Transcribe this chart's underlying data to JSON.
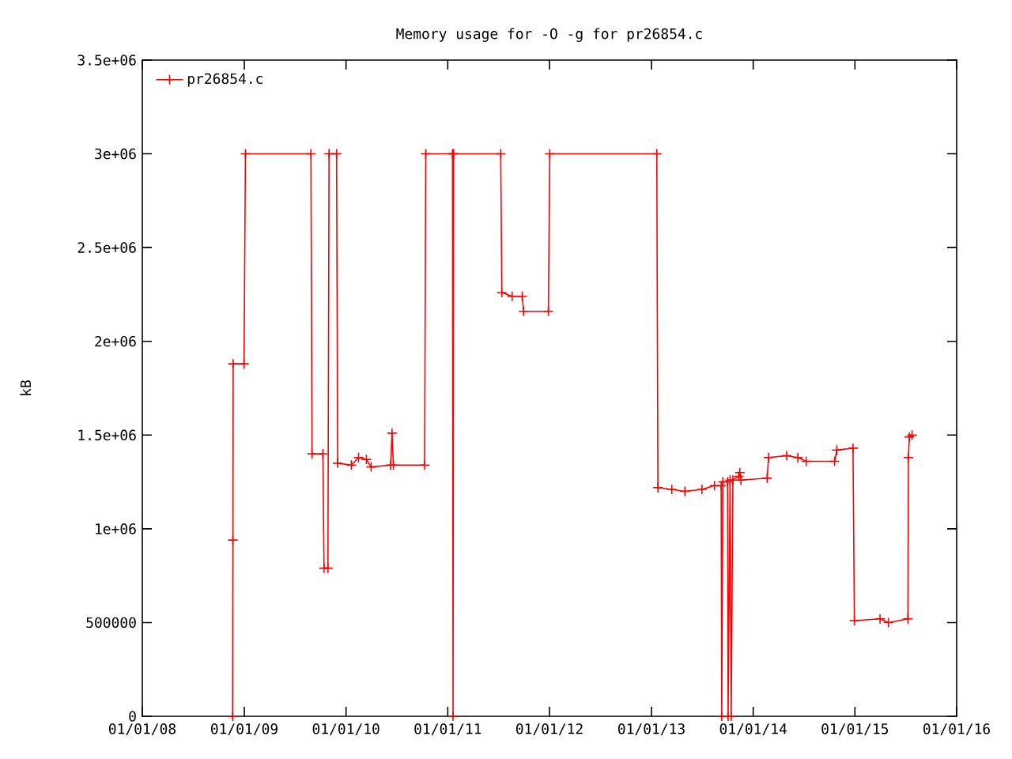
{
  "chart_data": {
    "type": "line",
    "title": "Memory usage for -O -g for pr26854.c",
    "ylabel": "kB",
    "x": [
      "2008-11-20",
      "2008-11-21",
      "2008-11-22",
      "2008-12-31",
      "2009-01-05",
      "2009-08-28",
      "2009-09-01",
      "2009-10-10",
      "2009-10-14",
      "2009-10-28",
      "2009-11-01",
      "2009-11-28",
      "2009-12-02",
      "2010-01-20",
      "2010-02-15",
      "2010-03-15",
      "2010-04-01",
      "2010-06-10",
      "2010-06-15",
      "2010-06-20",
      "2010-10-10",
      "2010-10-14",
      "2011-01-18",
      "2011-01-20",
      "2011-01-22",
      "2011-07-10",
      "2011-07-14",
      "2011-08-20",
      "2011-09-25",
      "2011-09-30",
      "2011-12-28",
      "2012-01-02",
      "2013-01-20",
      "2013-01-24",
      "2013-03-15",
      "2013-05-01",
      "2013-07-01",
      "2013-08-15",
      "2013-09-08",
      "2013-09-10",
      "2013-09-14",
      "2013-10-01",
      "2013-10-03",
      "2013-10-10",
      "2013-10-14",
      "2013-10-20",
      "2013-11-10",
      "2013-11-14",
      "2013-11-18",
      "2014-02-20",
      "2014-02-25",
      "2014-05-01",
      "2014-06-10",
      "2014-07-10",
      "2014-10-20",
      "2014-10-28",
      "2014-12-25",
      "2014-12-30",
      "2015-04-01",
      "2015-05-01",
      "2015-07-10",
      "2015-07-12",
      "2015-07-15",
      "2015-07-25"
    ],
    "series": [
      {
        "name": "pr26854.c",
        "color": "#ff0000",
        "values": [
          0,
          940000,
          1880000,
          1880000,
          3000000,
          3000000,
          1400000,
          1400000,
          790000,
          790000,
          3000000,
          3000000,
          1350000,
          1340000,
          1380000,
          1370000,
          1330000,
          1340000,
          1510000,
          1340000,
          1340000,
          3000000,
          3000000,
          0,
          3000000,
          3000000,
          2260000,
          2240000,
          2240000,
          2160000,
          2160000,
          3000000,
          3000000,
          1220000,
          1210000,
          1200000,
          1210000,
          1230000,
          1230000,
          0,
          1250000,
          1250000,
          0,
          1260000,
          0,
          1260000,
          1280000,
          1300000,
          1260000,
          1270000,
          1380000,
          1390000,
          1380000,
          1360000,
          1360000,
          1420000,
          1430000,
          510000,
          520000,
          500000,
          520000,
          1380000,
          1490000,
          1500000
        ]
      }
    ],
    "xlim": [
      "2008-01-01",
      "2016-01-01"
    ],
    "xticks": [
      {
        "value": "2008-01-01",
        "label": "01/01/08"
      },
      {
        "value": "2009-01-01",
        "label": "01/01/09"
      },
      {
        "value": "2010-01-01",
        "label": "01/01/10"
      },
      {
        "value": "2011-01-01",
        "label": "01/01/11"
      },
      {
        "value": "2012-01-01",
        "label": "01/01/12"
      },
      {
        "value": "2013-01-01",
        "label": "01/01/13"
      },
      {
        "value": "2014-01-01",
        "label": "01/01/14"
      },
      {
        "value": "2015-01-01",
        "label": "01/01/15"
      },
      {
        "value": "2016-01-01",
        "label": "01/01/16"
      }
    ],
    "ylim": [
      0,
      3500000
    ],
    "yticks": [
      0,
      500000,
      {
        "value": 1000000,
        "label": "1e+06"
      },
      {
        "value": 1500000,
        "label": "1.5e+06"
      },
      {
        "value": 2000000,
        "label": "2e+06"
      },
      {
        "value": 2500000,
        "label": "2.5e+06"
      },
      {
        "value": 3000000,
        "label": "3e+06"
      },
      {
        "value": 3500000,
        "label": "3.5e+06"
      }
    ],
    "legend": "top left",
    "marker": "cross",
    "line_style": "solid",
    "grid": false
  }
}
